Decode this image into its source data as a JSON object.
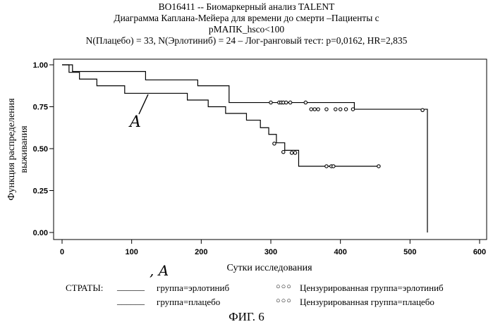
{
  "header": {
    "line1": "BO16411 -- Биомаркерный анализ TALENT",
    "line2": "Диаграмма Каплана-Мейера для времени до смерти –Пациенты с",
    "line3": "pMAПK_hsco<100",
    "line4": "N(Плацебо) = 33, N(Эрлотиниб) = 24 – Лог-ранговый тест: p=0,0162, HR=2,835"
  },
  "legend": {
    "strata_label": "СТРАТЫ:",
    "line_sample": "______",
    "erlotinib": "группа=эрлотиниб",
    "placebo": "группа=плацебо",
    "censor_sample": "○○○",
    "censored_erlotinib": "Цензурированная группа=эрлотиниб",
    "censored_placebo": "Цензурированная группа=плацебо"
  },
  "annotations": {
    "a_label_plot": "A",
    "a_label_legend": ", A"
  },
  "figure_caption": "ФИГ. 6",
  "chart_data": {
    "type": "line",
    "xlabel": "Сутки исследования",
    "ylabel": "Функция распределения выживания",
    "xlim": [
      0,
      600
    ],
    "ylim": [
      0,
      1
    ],
    "x_ticks": [
      0,
      100,
      200,
      300,
      400,
      500,
      600
    ],
    "y_ticks": [
      0.0,
      0.25,
      0.5,
      0.75,
      1.0
    ],
    "y_tick_labels": [
      "0.00",
      "0.25",
      "0.50",
      "0.75",
      "1.00"
    ],
    "grid": false,
    "series": [
      {
        "name": "группа=эрлотиниб",
        "kind": "step",
        "x": [
          0,
          15,
          120,
          195,
          240,
          420,
          520,
          525
        ],
        "y": [
          1.0,
          0.96,
          0.91,
          0.875,
          0.775,
          0.735,
          0.735,
          0.0
        ],
        "censored": {
          "x": [
            300,
            312,
            315,
            318,
            322,
            328,
            350,
            358,
            363,
            368,
            380,
            393,
            400,
            408,
            418,
            518
          ],
          "y": [
            0.775,
            0.775,
            0.775,
            0.775,
            0.775,
            0.775,
            0.775,
            0.735,
            0.735,
            0.735,
            0.735,
            0.735,
            0.735,
            0.735,
            0.735,
            0.73
          ]
        }
      },
      {
        "name": "группа=плацебо",
        "kind": "step",
        "x": [
          0,
          10,
          25,
          50,
          90,
          180,
          210,
          235,
          265,
          285,
          297,
          308,
          320,
          340,
          455
        ],
        "y": [
          1.0,
          0.955,
          0.915,
          0.875,
          0.83,
          0.79,
          0.75,
          0.71,
          0.67,
          0.625,
          0.585,
          0.535,
          0.49,
          0.395,
          0.395
        ],
        "censored": {
          "x": [
            305,
            318,
            330,
            335,
            380,
            387,
            390,
            455
          ],
          "y": [
            0.53,
            0.48,
            0.475,
            0.475,
            0.395,
            0.395,
            0.395,
            0.395
          ]
        }
      }
    ]
  }
}
